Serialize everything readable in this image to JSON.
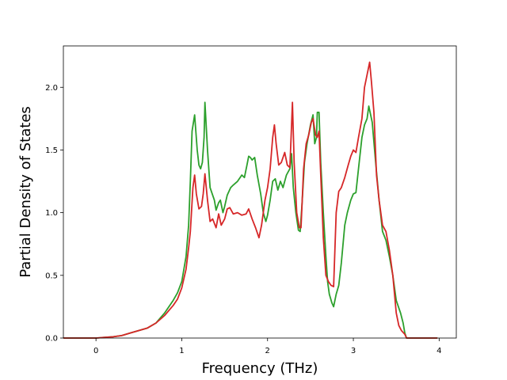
{
  "chart_data": {
    "type": "line",
    "title": "",
    "xlabel": "Frequency (THz)",
    "ylabel": "Partial Density of States",
    "xlim": [
      -0.38,
      4.2
    ],
    "ylim": [
      0.0,
      2.33
    ],
    "xticks": [
      0,
      1,
      2,
      3,
      4
    ],
    "xtick_labels": [
      "0",
      "1",
      "2",
      "3",
      "4"
    ],
    "yticks": [
      0.0,
      0.5,
      1.0,
      1.5,
      2.0
    ],
    "ytick_labels": [
      "0.0",
      "0.5",
      "1.0",
      "1.5",
      "2.0"
    ],
    "grid": false,
    "legend": "none",
    "series": [
      {
        "color": "#2ca02c",
        "points": [
          [
            -0.38,
            0.0
          ],
          [
            0.0,
            0.0
          ],
          [
            0.2,
            0.01
          ],
          [
            0.3,
            0.02
          ],
          [
            0.4,
            0.04
          ],
          [
            0.5,
            0.06
          ],
          [
            0.6,
            0.08
          ],
          [
            0.7,
            0.12
          ],
          [
            0.8,
            0.2
          ],
          [
            0.9,
            0.3
          ],
          [
            0.95,
            0.36
          ],
          [
            1.0,
            0.45
          ],
          [
            1.05,
            0.65
          ],
          [
            1.08,
            0.9
          ],
          [
            1.1,
            1.25
          ],
          [
            1.12,
            1.65
          ],
          [
            1.15,
            1.78
          ],
          [
            1.18,
            1.5
          ],
          [
            1.2,
            1.38
          ],
          [
            1.22,
            1.35
          ],
          [
            1.24,
            1.4
          ],
          [
            1.26,
            1.6
          ],
          [
            1.27,
            1.88
          ],
          [
            1.3,
            1.5
          ],
          [
            1.33,
            1.2
          ],
          [
            1.35,
            1.16
          ],
          [
            1.38,
            1.1
          ],
          [
            1.4,
            1.02
          ],
          [
            1.43,
            1.08
          ],
          [
            1.45,
            1.1
          ],
          [
            1.48,
            1.0
          ],
          [
            1.5,
            1.05
          ],
          [
            1.53,
            1.14
          ],
          [
            1.57,
            1.2
          ],
          [
            1.6,
            1.22
          ],
          [
            1.65,
            1.25
          ],
          [
            1.7,
            1.3
          ],
          [
            1.73,
            1.28
          ],
          [
            1.76,
            1.38
          ],
          [
            1.78,
            1.45
          ],
          [
            1.8,
            1.44
          ],
          [
            1.82,
            1.42
          ],
          [
            1.85,
            1.44
          ],
          [
            1.88,
            1.3
          ],
          [
            1.92,
            1.15
          ],
          [
            1.95,
            1.0
          ],
          [
            1.98,
            0.93
          ],
          [
            2.0,
            0.98
          ],
          [
            2.03,
            1.1
          ],
          [
            2.06,
            1.25
          ],
          [
            2.09,
            1.27
          ],
          [
            2.12,
            1.18
          ],
          [
            2.15,
            1.25
          ],
          [
            2.18,
            1.2
          ],
          [
            2.22,
            1.3
          ],
          [
            2.26,
            1.35
          ],
          [
            2.28,
            1.47
          ],
          [
            2.3,
            1.2
          ],
          [
            2.33,
            1.0
          ],
          [
            2.36,
            0.86
          ],
          [
            2.38,
            0.85
          ],
          [
            2.4,
            1.05
          ],
          [
            2.43,
            1.4
          ],
          [
            2.46,
            1.55
          ],
          [
            2.5,
            1.7
          ],
          [
            2.53,
            1.78
          ],
          [
            2.55,
            1.55
          ],
          [
            2.57,
            1.6
          ],
          [
            2.58,
            1.8
          ],
          [
            2.6,
            1.8
          ],
          [
            2.62,
            1.4
          ],
          [
            2.65,
            1.0
          ],
          [
            2.68,
            0.65
          ],
          [
            2.7,
            0.45
          ],
          [
            2.72,
            0.35
          ],
          [
            2.75,
            0.28
          ],
          [
            2.77,
            0.25
          ],
          [
            2.8,
            0.35
          ],
          [
            2.83,
            0.42
          ],
          [
            2.86,
            0.6
          ],
          [
            2.9,
            0.9
          ],
          [
            2.93,
            1.0
          ],
          [
            2.97,
            1.1
          ],
          [
            3.0,
            1.15
          ],
          [
            3.03,
            1.16
          ],
          [
            3.06,
            1.35
          ],
          [
            3.1,
            1.6
          ],
          [
            3.13,
            1.7
          ],
          [
            3.16,
            1.75
          ],
          [
            3.18,
            1.85
          ],
          [
            3.22,
            1.72
          ],
          [
            3.26,
            1.4
          ],
          [
            3.3,
            1.1
          ],
          [
            3.34,
            0.85
          ],
          [
            3.38,
            0.78
          ],
          [
            3.42,
            0.65
          ],
          [
            3.46,
            0.5
          ],
          [
            3.5,
            0.3
          ],
          [
            3.55,
            0.2
          ],
          [
            3.58,
            0.12
          ],
          [
            3.6,
            0.04
          ],
          [
            3.62,
            0.0
          ],
          [
            3.98,
            0.0
          ]
        ]
      },
      {
        "color": "#d62728",
        "points": [
          [
            -0.38,
            0.0
          ],
          [
            0.0,
            0.0
          ],
          [
            0.2,
            0.01
          ],
          [
            0.3,
            0.02
          ],
          [
            0.4,
            0.04
          ],
          [
            0.5,
            0.06
          ],
          [
            0.6,
            0.08
          ],
          [
            0.7,
            0.12
          ],
          [
            0.8,
            0.18
          ],
          [
            0.9,
            0.26
          ],
          [
            0.95,
            0.31
          ],
          [
            1.0,
            0.4
          ],
          [
            1.05,
            0.55
          ],
          [
            1.08,
            0.72
          ],
          [
            1.1,
            0.85
          ],
          [
            1.13,
            1.2
          ],
          [
            1.15,
            1.3
          ],
          [
            1.17,
            1.15
          ],
          [
            1.2,
            1.03
          ],
          [
            1.23,
            1.05
          ],
          [
            1.25,
            1.15
          ],
          [
            1.27,
            1.31
          ],
          [
            1.3,
            1.1
          ],
          [
            1.33,
            0.93
          ],
          [
            1.36,
            0.95
          ],
          [
            1.4,
            0.88
          ],
          [
            1.43,
            0.99
          ],
          [
            1.46,
            0.9
          ],
          [
            1.5,
            0.95
          ],
          [
            1.53,
            1.03
          ],
          [
            1.56,
            1.04
          ],
          [
            1.6,
            0.99
          ],
          [
            1.65,
            1.0
          ],
          [
            1.7,
            0.98
          ],
          [
            1.75,
            0.99
          ],
          [
            1.78,
            1.03
          ],
          [
            1.82,
            0.95
          ],
          [
            1.86,
            0.88
          ],
          [
            1.9,
            0.8
          ],
          [
            1.93,
            0.9
          ],
          [
            1.97,
            1.1
          ],
          [
            2.0,
            1.2
          ],
          [
            2.03,
            1.35
          ],
          [
            2.06,
            1.6
          ],
          [
            2.08,
            1.7
          ],
          [
            2.1,
            1.55
          ],
          [
            2.13,
            1.38
          ],
          [
            2.16,
            1.4
          ],
          [
            2.2,
            1.48
          ],
          [
            2.23,
            1.38
          ],
          [
            2.26,
            1.36
          ],
          [
            2.28,
            1.7
          ],
          [
            2.29,
            1.88
          ],
          [
            2.31,
            1.4
          ],
          [
            2.34,
            1.0
          ],
          [
            2.37,
            0.88
          ],
          [
            2.39,
            0.88
          ],
          [
            2.42,
            1.35
          ],
          [
            2.45,
            1.55
          ],
          [
            2.48,
            1.62
          ],
          [
            2.51,
            1.72
          ],
          [
            2.53,
            1.75
          ],
          [
            2.56,
            1.62
          ],
          [
            2.58,
            1.6
          ],
          [
            2.6,
            1.65
          ],
          [
            2.62,
            1.3
          ],
          [
            2.65,
            0.8
          ],
          [
            2.68,
            0.5
          ],
          [
            2.71,
            0.45
          ],
          [
            2.74,
            0.42
          ],
          [
            2.77,
            0.41
          ],
          [
            2.8,
            1.0
          ],
          [
            2.83,
            1.17
          ],
          [
            2.86,
            1.2
          ],
          [
            2.9,
            1.28
          ],
          [
            2.94,
            1.38
          ],
          [
            2.97,
            1.45
          ],
          [
            3.0,
            1.5
          ],
          [
            3.03,
            1.48
          ],
          [
            3.06,
            1.6
          ],
          [
            3.1,
            1.75
          ],
          [
            3.13,
            2.0
          ],
          [
            3.16,
            2.1
          ],
          [
            3.19,
            2.2
          ],
          [
            3.21,
            2.05
          ],
          [
            3.24,
            1.8
          ],
          [
            3.27,
            1.3
          ],
          [
            3.3,
            1.1
          ],
          [
            3.34,
            0.9
          ],
          [
            3.38,
            0.85
          ],
          [
            3.42,
            0.7
          ],
          [
            3.46,
            0.5
          ],
          [
            3.5,
            0.2
          ],
          [
            3.53,
            0.1
          ],
          [
            3.56,
            0.06
          ],
          [
            3.6,
            0.03
          ],
          [
            3.62,
            0.0
          ],
          [
            3.98,
            0.0
          ]
        ]
      }
    ]
  }
}
